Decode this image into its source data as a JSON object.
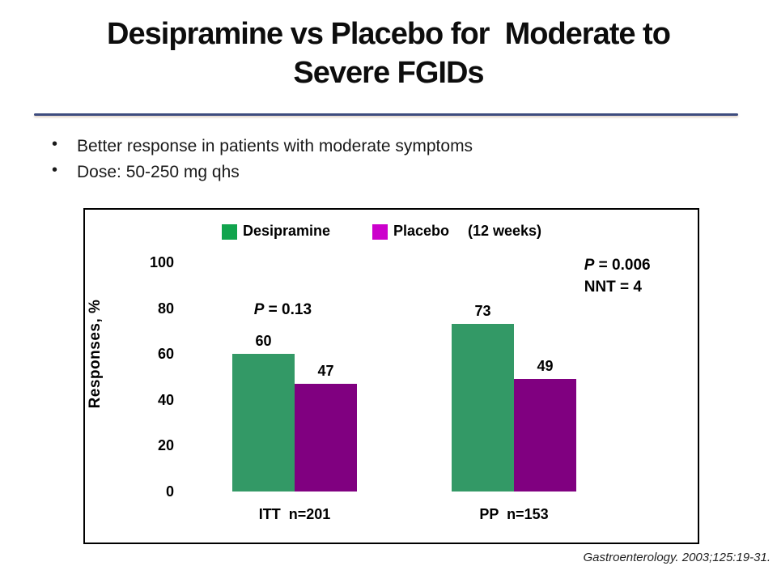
{
  "slide": {
    "title_line1": "Desipramine vs Placebo for  Moderate to",
    "title_line2": "Severe FGIDs",
    "divider_color": "#3E4C7E",
    "bullets": [
      "Better response in patients with moderate symptoms",
      "Dose: 50-250 mg qhs"
    ],
    "bullet_char": "•",
    "citation": "Gastroenterology. 2003;125:19-31."
  },
  "chart_data": {
    "type": "bar",
    "title": "",
    "xlabel": "",
    "ylabel": "Responses, %",
    "ylim": [
      0,
      100
    ],
    "yticks": [
      0,
      20,
      40,
      60,
      80,
      100
    ],
    "grid": false,
    "legend_position": "top",
    "legend_note": "(12 weeks)",
    "categories": [
      "ITT  n=201",
      "PP  n=153"
    ],
    "series": [
      {
        "name": "Desipramine",
        "values": [
          60,
          73
        ],
        "bar_color": "#339966",
        "legend_color": "#11A44D"
      },
      {
        "name": "Placebo",
        "values": [
          47,
          49
        ],
        "bar_color": "#800080",
        "legend_color": "#CC00CC"
      }
    ],
    "annotations": [
      {
        "id": "itt-p",
        "italic": "P",
        "text": " = 0.13"
      },
      {
        "id": "pp-p",
        "italic": "P",
        "text": " = 0.006"
      },
      {
        "id": "nnt",
        "italic": "",
        "text": "NNT = 4"
      }
    ]
  }
}
